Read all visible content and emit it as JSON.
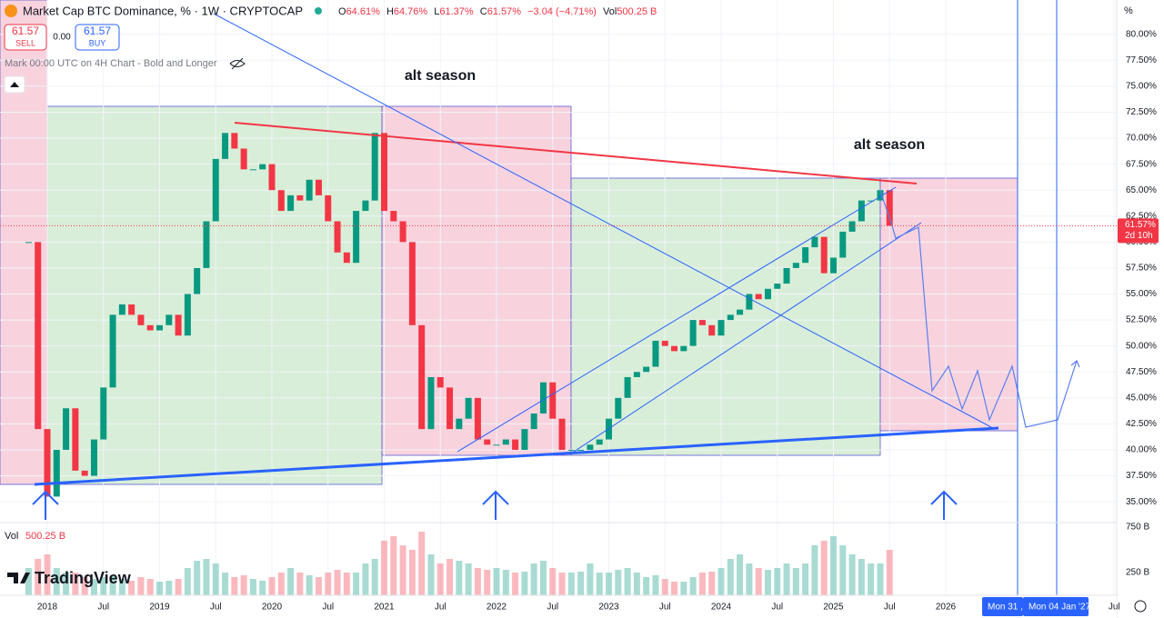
{
  "header": {
    "symbol": "Market Cap BTC Dominance, % · 1W · CRYPTOCAP",
    "open_label": "O",
    "open": "64.61%",
    "high_label": "H",
    "high": "64.76%",
    "low_label": "L",
    "low": "61.37%",
    "close_label": "C",
    "close": "61.57%",
    "change": "−3.04 (−4.71%)",
    "vol_label": "Vol",
    "vol": "500.25 B"
  },
  "trade": {
    "sell_price": "61.57",
    "sell": "SELL",
    "spread": "0.00",
    "buy_price": "61.57",
    "buy": "BUY"
  },
  "indicator": "Mark 00:00 UTC on 4H Chart - Bold and Longer",
  "annotations": [
    "alt season",
    "alt season"
  ],
  "unit_button": "%",
  "logo": "TradingView",
  "chart_data": {
    "type": "candlestick",
    "x": [
      "2017-11",
      "2017-12",
      "2018-01",
      "2018-02",
      "2018-03",
      "2018-04",
      "2018-05",
      "2018-06",
      "2018-07",
      "2018-08",
      "2018-09",
      "2018-10",
      "2018-11",
      "2018-12",
      "2019-01",
      "2019-02",
      "2019-03",
      "2019-04",
      "2019-05",
      "2019-06",
      "2019-07",
      "2019-08",
      "2019-09",
      "2019-10",
      "2019-11",
      "2019-12",
      "2020-01",
      "2020-02",
      "2020-03",
      "2020-04",
      "2020-05",
      "2020-06",
      "2020-07",
      "2020-08",
      "2020-09",
      "2020-10",
      "2020-11",
      "2020-12",
      "2021-01",
      "2021-02",
      "2021-03",
      "2021-04",
      "2021-05",
      "2021-06",
      "2021-07",
      "2021-08",
      "2021-09",
      "2021-10",
      "2021-11",
      "2021-12",
      "2022-01",
      "2022-02",
      "2022-03",
      "2022-04",
      "2022-05",
      "2022-06",
      "2022-07",
      "2022-08",
      "2022-09",
      "2022-10",
      "2022-11",
      "2022-12",
      "2023-01",
      "2023-02",
      "2023-03",
      "2023-04",
      "2023-05",
      "2023-06",
      "2023-07",
      "2023-08",
      "2023-09",
      "2023-10",
      "2023-11",
      "2023-12",
      "2024-01",
      "2024-02",
      "2024-03",
      "2024-04",
      "2024-05",
      "2024-06",
      "2024-07",
      "2024-08",
      "2024-09",
      "2024-10",
      "2024-11",
      "2024-12",
      "2025-01",
      "2025-02",
      "2025-03",
      "2025-04",
      "2025-05",
      "2025-06",
      "2025-07"
    ],
    "close": [
      60,
      42,
      35.5,
      40,
      44,
      38,
      37.5,
      41,
      46,
      53,
      54,
      53,
      52,
      51.5,
      52,
      53,
      51,
      55,
      57.5,
      62,
      68,
      70.5,
      69,
      67,
      67,
      67.5,
      65,
      63,
      64.5,
      64,
      66,
      64.5,
      62,
      59,
      58,
      63,
      64,
      70.5,
      63,
      62,
      60,
      52,
      42,
      47,
      46,
      42,
      43,
      45,
      41,
      40.5,
      40.5,
      41,
      40,
      42,
      43.5,
      46.5,
      43,
      40,
      40,
      40,
      40.5,
      41,
      43,
      45,
      47,
      47.5,
      48,
      50.5,
      50,
      49.5,
      50,
      52.5,
      52,
      51,
      52.5,
      53,
      53.5,
      55,
      54.5,
      55.5,
      56,
      57.5,
      58,
      59.5,
      60.5,
      57,
      58.5,
      61,
      62,
      64,
      64,
      65,
      61.57
    ],
    "volume": [
      300,
      400,
      450,
      300,
      250,
      250,
      200,
      180,
      200,
      220,
      180,
      160,
      200,
      180,
      150,
      160,
      180,
      300,
      380,
      400,
      350,
      250,
      200,
      220,
      180,
      160,
      200,
      250,
      300,
      250,
      220,
      200,
      250,
      280,
      250,
      250,
      350,
      400,
      600,
      650,
      550,
      500,
      700,
      450,
      350,
      400,
      380,
      350,
      300,
      280,
      300,
      280,
      250,
      260,
      350,
      380,
      300,
      250,
      250,
      260,
      350,
      250,
      250,
      280,
      300,
      250,
      200,
      220,
      180,
      150,
      150,
      200,
      250,
      260,
      300,
      400,
      450,
      350,
      300,
      280,
      300,
      350,
      300,
      350,
      550,
      600,
      650,
      550,
      450,
      400,
      350,
      350,
      500.25
    ],
    "up_color": "#089981",
    "down_color": "#f23645",
    "ylim": [
      33,
      83.3
    ],
    "yticks": [
      {
        "value": 80,
        "label": "80.00%"
      },
      {
        "value": 77.5,
        "label": "77.50%"
      },
      {
        "value": 75,
        "label": "75.00%"
      },
      {
        "value": 72.5,
        "label": "72.50%"
      },
      {
        "value": 70,
        "label": "70.00%"
      },
      {
        "value": 67.5,
        "label": "67.50%"
      },
      {
        "value": 65,
        "label": "65.00%"
      },
      {
        "value": 62.5,
        "label": "62.50%"
      },
      {
        "value": 60,
        "label": "60.00%"
      },
      {
        "value": 57.5,
        "label": "57.50%"
      },
      {
        "value": 55,
        "label": "55.00%"
      },
      {
        "value": 52.5,
        "label": "52.50%"
      },
      {
        "value": 50,
        "label": "50.00%"
      },
      {
        "value": 47.5,
        "label": "47.50%"
      },
      {
        "value": 45,
        "label": "45.00%"
      },
      {
        "value": 42.5,
        "label": "42.50%"
      },
      {
        "value": 40,
        "label": "40.00%"
      },
      {
        "value": 37.5,
        "label": "37.50%"
      },
      {
        "value": 35,
        "label": "35.00%"
      }
    ],
    "xticks": [
      {
        "value": "2018-01",
        "label": "2018"
      },
      {
        "value": "2018-07",
        "label": "Jul"
      },
      {
        "value": "2019-01",
        "label": "2019"
      },
      {
        "value": "2019-07",
        "label": "Jul"
      },
      {
        "value": "2020-01",
        "label": "2020"
      },
      {
        "value": "2020-07",
        "label": "Jul"
      },
      {
        "value": "2021-01",
        "label": "2021"
      },
      {
        "value": "2021-07",
        "label": "Jul"
      },
      {
        "value": "2022-01",
        "label": "2022"
      },
      {
        "value": "2022-07",
        "label": "Jul"
      },
      {
        "value": "2023-01",
        "label": "2023"
      },
      {
        "value": "2023-07",
        "label": "Jul"
      },
      {
        "value": "2024-01",
        "label": "2024"
      },
      {
        "value": "2024-07",
        "label": "Jul"
      },
      {
        "value": "2025-01",
        "label": "2025"
      },
      {
        "value": "2025-07",
        "label": "Jul"
      },
      {
        "value": "2026-01",
        "label": "2026"
      },
      {
        "value": "2027-07",
        "label": "Jul"
      }
    ],
    "vol_ticks": [
      {
        "value": 750,
        "label": "750 B"
      },
      {
        "value": 250,
        "label": "250 B"
      }
    ],
    "last_price": {
      "value": 61.57,
      "label": "61.57%",
      "countdown": "2d 10h"
    },
    "date_labels": [
      "Mon 31 ,",
      "Mon 04 Jan '27"
    ]
  }
}
